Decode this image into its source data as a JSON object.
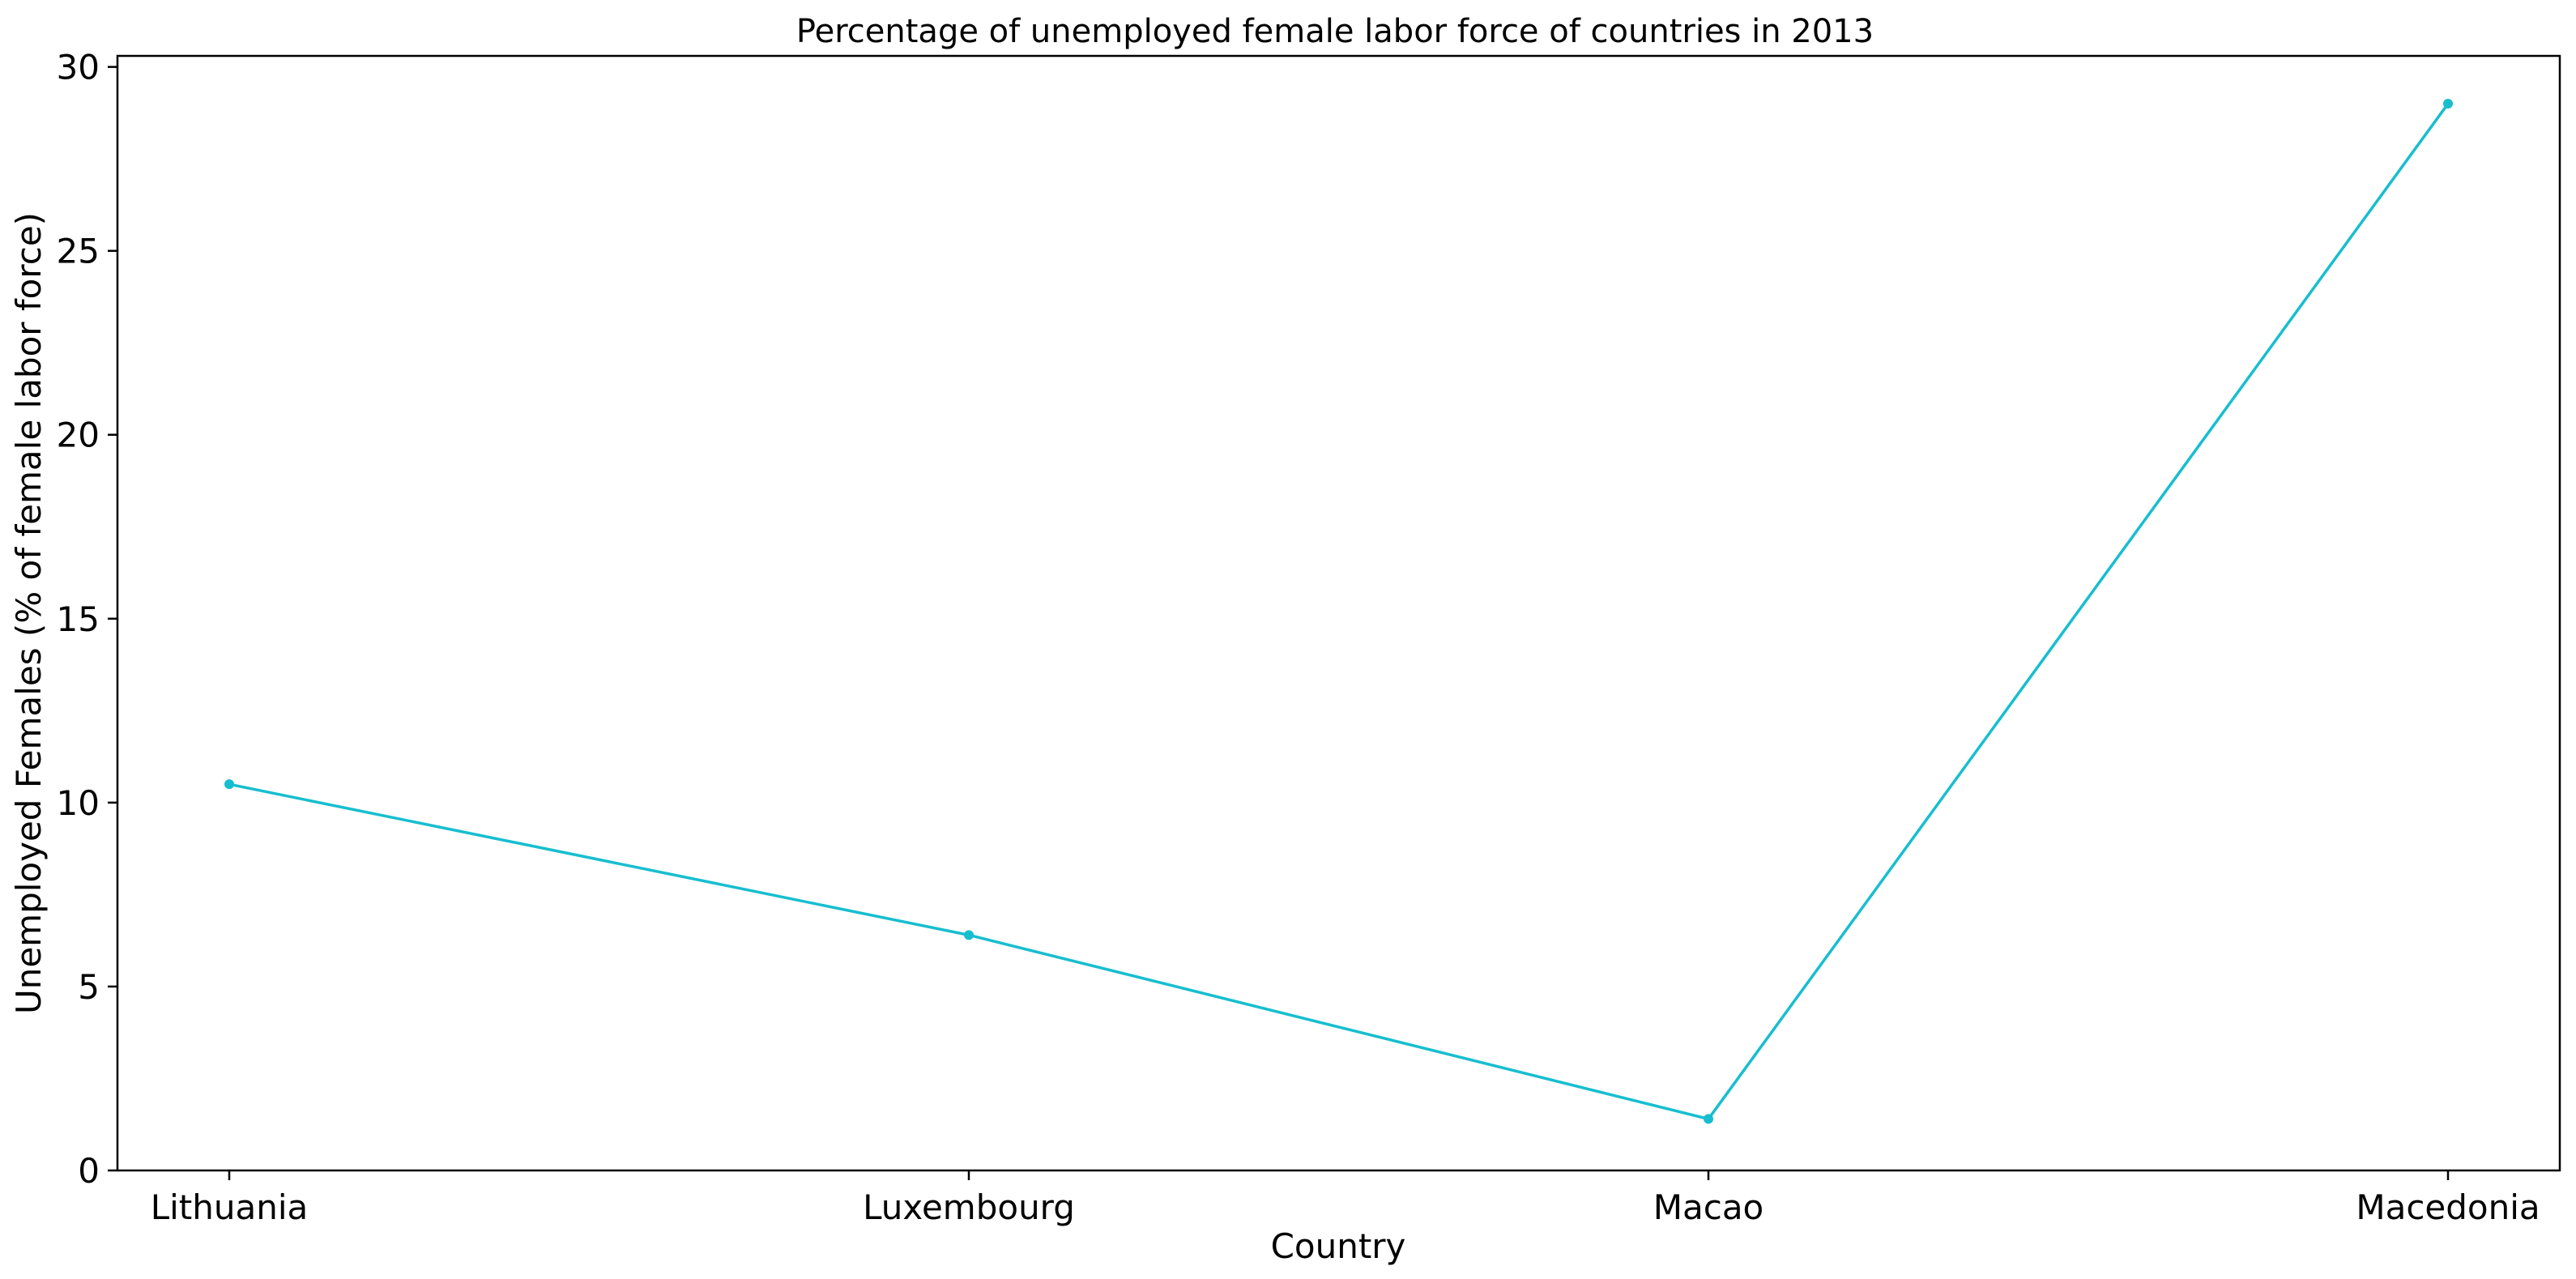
{
  "chart_data": {
    "type": "line",
    "title": "Percentage of unemployed female labor force of countries in 2013",
    "xlabel": "Country",
    "ylabel": "Unemployed Females (% of female labor force)",
    "categories": [
      "Lithuania",
      "Luxembourg",
      "Macao",
      "Macedonia"
    ],
    "series": [
      {
        "name": "Unemployed Females",
        "values": [
          10.5,
          6.4,
          1.4,
          29.0
        ],
        "color": "#17BECF"
      }
    ],
    "ylim": [
      0,
      30.3
    ],
    "yticks": [
      0,
      5,
      10,
      15,
      20,
      25,
      30
    ],
    "grid": false
  }
}
